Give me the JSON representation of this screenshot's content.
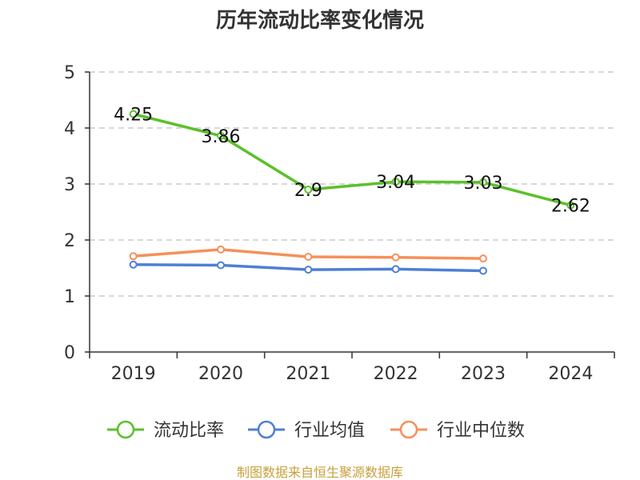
{
  "chart_data": {
    "type": "line",
    "title": "历年流动比率变化情况",
    "categories": [
      "2019",
      "2020",
      "2021",
      "2022",
      "2023",
      "2024"
    ],
    "ylim": [
      0,
      5
    ],
    "yticks": [
      "0",
      "1",
      "2",
      "3",
      "4",
      "5"
    ],
    "grid": true,
    "legend_position": "bottom",
    "series": [
      {
        "name": "流动比率",
        "color": "#5cc02a",
        "values": [
          4.25,
          3.86,
          2.9,
          3.04,
          3.03,
          2.62
        ],
        "labels": [
          "4.25",
          "3.86",
          "2.9",
          "3.04",
          "3.03",
          "2.62"
        ]
      },
      {
        "name": "行业均值",
        "color": "#4e7fd6",
        "values": [
          1.56,
          1.55,
          1.47,
          1.48,
          1.45,
          null
        ]
      },
      {
        "name": "行业中位数",
        "color": "#f5905a",
        "values": [
          1.71,
          1.83,
          1.7,
          1.69,
          1.67,
          null
        ]
      }
    ],
    "source": "制图数据来自恒生聚源数据库"
  }
}
